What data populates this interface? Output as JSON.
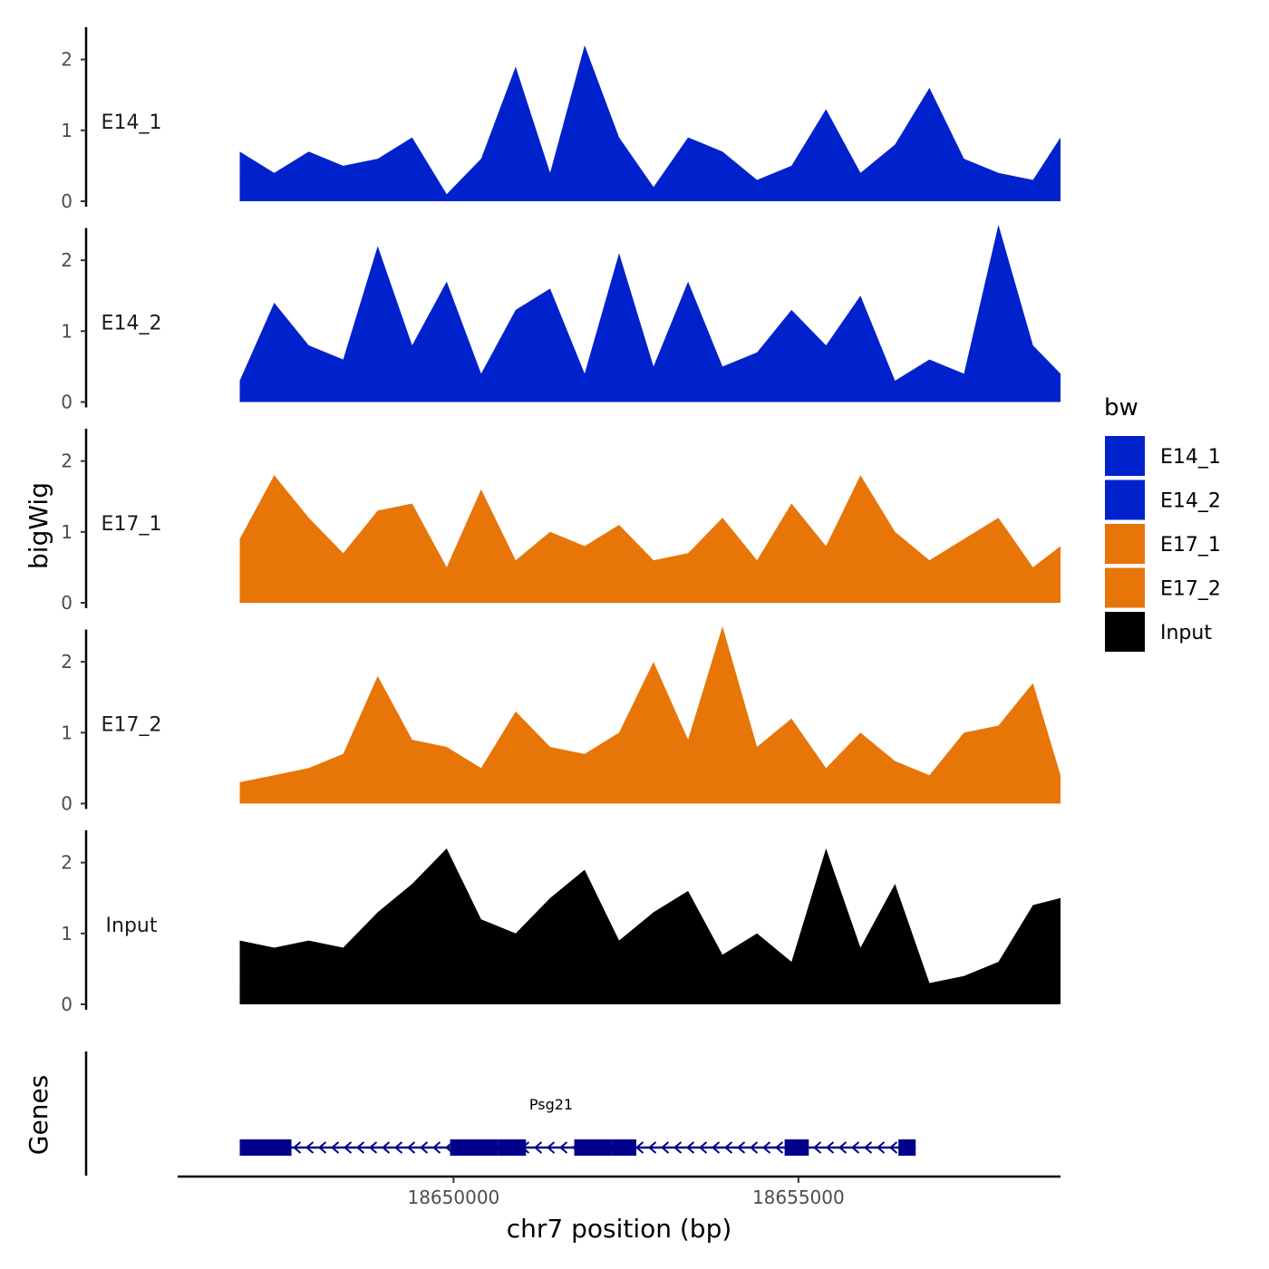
{
  "chart_data": {
    "type": "area",
    "title": "",
    "xlabel": "chr7 position (bp)",
    "ylabel": "bigWig",
    "xlim": [
      18646000,
      18658800
    ],
    "xticks": [
      18650000,
      18655000
    ],
    "xtick_labels": [
      "18650000",
      "18655000"
    ],
    "ylim": [
      0,
      2.6
    ],
    "yticks": [
      0,
      1,
      2
    ],
    "ytick_labels": [
      "0",
      "1",
      "2"
    ],
    "x": [
      18646900,
      18647400,
      18647900,
      18648400,
      18648900,
      18649400,
      18649900,
      18650400,
      18650900,
      18651400,
      18651900,
      18652400,
      18652900,
      18653400,
      18653900,
      18654400,
      18654900,
      18655400,
      18655900,
      18656400,
      18656900,
      18657400,
      18657900,
      18658400,
      18658800
    ],
    "series": [
      {
        "name": "E14_1",
        "color": "#0022CC",
        "values": [
          0.7,
          0.4,
          0.7,
          0.5,
          0.6,
          0.9,
          0.1,
          0.6,
          1.9,
          0.4,
          2.2,
          0.9,
          0.2,
          0.9,
          0.7,
          0.3,
          0.5,
          1.3,
          0.4,
          0.8,
          1.6,
          0.6,
          0.4,
          0.3,
          0.9
        ]
      },
      {
        "name": "E14_2",
        "color": "#0022CC",
        "values": [
          0.3,
          1.4,
          0.8,
          0.6,
          2.2,
          0.8,
          1.7,
          0.4,
          1.3,
          1.6,
          0.4,
          2.1,
          0.5,
          1.7,
          0.5,
          0.7,
          1.3,
          0.8,
          1.5,
          0.3,
          0.6,
          0.4,
          2.5,
          0.8,
          0.4
        ]
      },
      {
        "name": "E17_1",
        "color": "#E87508",
        "values": [
          0.9,
          1.8,
          1.2,
          0.7,
          1.3,
          1.4,
          0.5,
          1.6,
          0.6,
          1.0,
          0.8,
          1.1,
          0.6,
          0.7,
          1.2,
          0.6,
          1.4,
          0.8,
          1.8,
          1.0,
          0.6,
          0.9,
          1.2,
          0.5,
          0.8
        ]
      },
      {
        "name": "E17_2",
        "color": "#E87508",
        "values": [
          0.3,
          0.4,
          0.5,
          0.7,
          1.8,
          0.9,
          0.8,
          0.5,
          1.3,
          0.8,
          0.7,
          1.0,
          2.0,
          0.9,
          2.5,
          0.8,
          1.2,
          0.5,
          1.0,
          0.6,
          0.4,
          1.0,
          1.1,
          1.7,
          0.4
        ]
      },
      {
        "name": "Input",
        "color": "#000000",
        "values": [
          0.9,
          0.8,
          0.9,
          0.8,
          1.3,
          1.7,
          2.2,
          1.2,
          1.0,
          1.5,
          1.9,
          0.9,
          1.3,
          1.6,
          0.7,
          1.0,
          0.6,
          2.2,
          0.8,
          1.7,
          0.3,
          0.4,
          0.6,
          1.4,
          1.5
        ]
      }
    ],
    "gene_track": {
      "ylabel": "Genes",
      "gene": "Psg21",
      "color": "#00008B",
      "strand": "-",
      "start": 18646900,
      "end": 18656700,
      "exons": [
        [
          18646900,
          18647650
        ],
        [
          18649950,
          18650650
        ],
        [
          18650650,
          18651050
        ],
        [
          18651750,
          18652300
        ],
        [
          18652300,
          18652650
        ],
        [
          18654800,
          18655150
        ],
        [
          18656450,
          18656700
        ]
      ]
    },
    "legend": {
      "title": "bw",
      "position": "right",
      "entries": [
        {
          "label": "E14_1",
          "color": "#0022CC"
        },
        {
          "label": "E14_2",
          "color": "#0022CC"
        },
        {
          "label": "E17_1",
          "color": "#E87508"
        },
        {
          "label": "E17_2",
          "color": "#E87508"
        },
        {
          "label": "Input",
          "color": "#000000"
        }
      ]
    }
  }
}
